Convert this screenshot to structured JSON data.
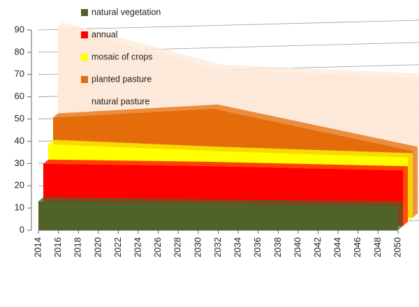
{
  "chart_data": {
    "type": "area3d",
    "x": [
      2014,
      2030,
      2050
    ],
    "xlim": [
      2014,
      2050
    ],
    "xticks": [
      2014,
      2016,
      2018,
      2020,
      2022,
      2024,
      2026,
      2028,
      2030,
      2032,
      2034,
      2036,
      2038,
      2040,
      2042,
      2044,
      2046,
      2048,
      2050
    ],
    "ylim": [
      0,
      90
    ],
    "yticks": [
      0,
      10,
      20,
      30,
      40,
      50,
      60,
      70,
      80,
      90
    ],
    "grid": true,
    "series": [
      {
        "name": "natural vegetation",
        "color": "#4f6228",
        "values": [
          13,
          12,
          11
        ]
      },
      {
        "name": "annual",
        "color": "#ff0000",
        "values": [
          28,
          27,
          25
        ]
      },
      {
        "name": "mosaic of crops",
        "color": "#ffff00",
        "values": [
          35,
          32,
          29
        ]
      },
      {
        "name": "planted pasture",
        "color": "#e46c0a",
        "values": [
          45,
          49,
          30
        ]
      },
      {
        "name": "natural pasture",
        "color": "#fde9d9",
        "values": [
          84,
          65,
          61
        ]
      }
    ]
  }
}
